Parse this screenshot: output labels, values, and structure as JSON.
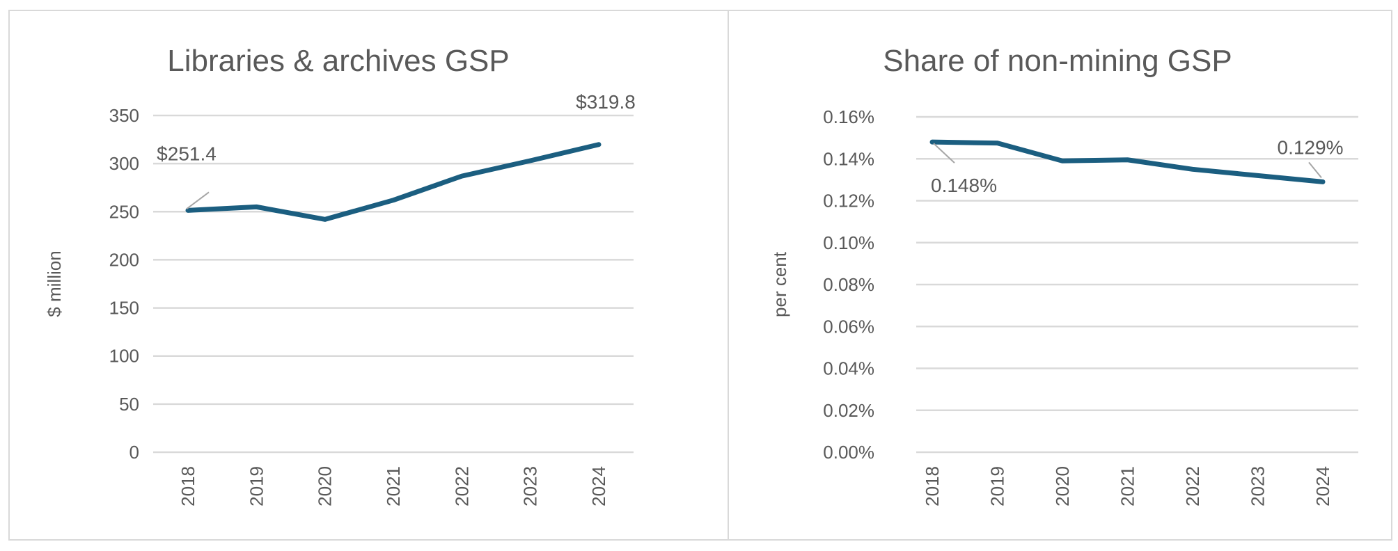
{
  "chart_data": [
    {
      "type": "line",
      "title": "Libraries & archives GSP",
      "xlabel": "",
      "ylabel": "$ million",
      "categories": [
        "2018",
        "2019",
        "2020",
        "2021",
        "2022",
        "2023",
        "2024"
      ],
      "values": [
        251.4,
        255,
        242,
        262,
        287,
        303,
        319.8
      ],
      "ylim": [
        0,
        350
      ],
      "yticks": [
        0,
        50,
        100,
        150,
        200,
        250,
        300,
        350
      ],
      "ytick_labels": [
        "0",
        "50",
        "100",
        "150",
        "200",
        "250",
        "300",
        "350"
      ],
      "data_labels": [
        {
          "index": 0,
          "text": "$251.4"
        },
        {
          "index": 6,
          "text": "$319.8"
        }
      ],
      "grid": true,
      "legend": "none",
      "line_color": "#1B5E80"
    },
    {
      "type": "line",
      "title": "Share of non-mining GSP",
      "xlabel": "",
      "ylabel": "per cent",
      "categories": [
        "2018",
        "2019",
        "2020",
        "2021",
        "2022",
        "2023",
        "2024"
      ],
      "values": [
        0.148,
        0.1475,
        0.139,
        0.1395,
        0.135,
        0.132,
        0.129
      ],
      "ylim": [
        0,
        0.16
      ],
      "yticks": [
        0,
        0.02,
        0.04,
        0.06,
        0.08,
        0.1,
        0.12,
        0.14,
        0.16
      ],
      "ytick_labels": [
        "0.00%",
        "0.02%",
        "0.04%",
        "0.06%",
        "0.08%",
        "0.10%",
        "0.12%",
        "0.14%",
        "0.16%"
      ],
      "data_labels": [
        {
          "index": 0,
          "text": "0.148%"
        },
        {
          "index": 6,
          "text": "0.129%"
        }
      ],
      "grid": true,
      "legend": "none",
      "line_color": "#1B5E80"
    }
  ]
}
